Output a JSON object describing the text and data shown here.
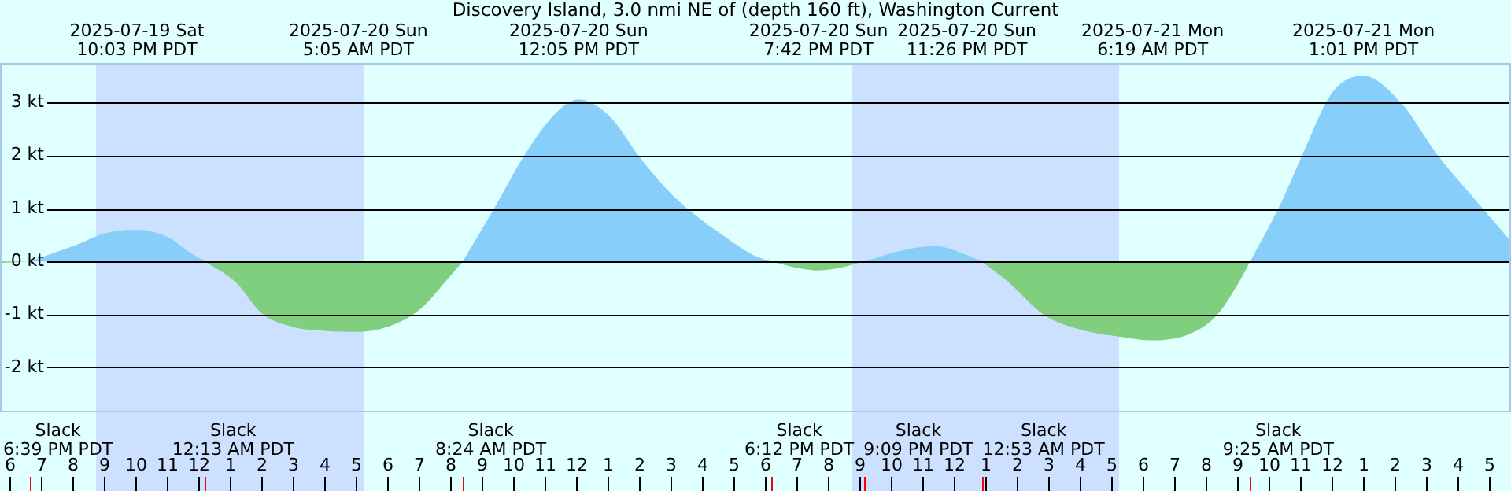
{
  "chart_data": {
    "type": "area",
    "title": "Discovery Island, 3.0 nmi NE of (depth 160 ft), Washington Current",
    "x": [
      "2025-07-19T17:42",
      "2025-07-19T18:39",
      "2025-07-19T20:12",
      "2025-07-19T21:02",
      "2025-07-19T22:03",
      "2025-07-19T23:02",
      "2025-07-19T23:42",
      "2025-07-20T00:13",
      "2025-07-20T01:12",
      "2025-07-20T02:02",
      "2025-07-20T03:02",
      "2025-07-20T04:00",
      "2025-07-20T05:05",
      "2025-07-20T06:02",
      "2025-07-20T07:02",
      "2025-07-20T07:52",
      "2025-07-20T08:24",
      "2025-07-20T09:22",
      "2025-07-20T10:22",
      "2025-07-20T11:22",
      "2025-07-20T12:05",
      "2025-07-20T13:02",
      "2025-07-20T14:02",
      "2025-07-20T15:02",
      "2025-07-20T15:42",
      "2025-07-20T16:42",
      "2025-07-20T17:42",
      "2025-07-20T18:12",
      "2025-07-20T19:00",
      "2025-07-20T19:42",
      "2025-07-20T20:24",
      "2025-07-20T21:09",
      "2025-07-20T22:22",
      "2025-07-20T23:26",
      "2025-07-21T00:22",
      "2025-07-21T00:53",
      "2025-07-21T01:42",
      "2025-07-21T02:52",
      "2025-07-21T04:02",
      "2025-07-21T05:22",
      "2025-07-21T06:19",
      "2025-07-21T07:32",
      "2025-07-21T08:22",
      "2025-07-21T09:02",
      "2025-07-21T09:25",
      "2025-07-21T10:22",
      "2025-07-21T11:02",
      "2025-07-21T12:02",
      "2025-07-21T13:01",
      "2025-07-21T14:12",
      "2025-07-21T15:22",
      "2025-07-21T16:42",
      "2025-07-21T17:42"
    ],
    "series": [
      {
        "color": "#87cefa",
        "values": [
          null,
          0,
          0.33,
          0.53,
          0.6,
          0.46,
          0.18,
          0,
          null,
          null,
          null,
          null,
          null,
          null,
          null,
          null,
          0,
          0.97,
          2.01,
          2.81,
          3.06,
          2.76,
          1.96,
          1.27,
          0.92,
          0.48,
          0.1,
          0,
          null,
          null,
          null,
          0,
          0.21,
          0.29,
          0.13,
          0,
          null,
          null,
          null,
          null,
          null,
          null,
          null,
          null,
          0,
          1.07,
          1.96,
          3.2,
          3.51,
          3.0,
          2.01,
          1.07,
          0.38
        ]
      },
      {
        "color": "#7fcf7f",
        "values": [
          -0.03,
          0,
          null,
          null,
          null,
          null,
          null,
          0,
          -0.4,
          -0.99,
          -1.24,
          -1.31,
          -1.33,
          -1.23,
          -0.91,
          -0.37,
          0,
          null,
          null,
          null,
          null,
          null,
          null,
          null,
          null,
          null,
          null,
          0,
          -0.12,
          -0.17,
          -0.12,
          0,
          null,
          null,
          null,
          0,
          -0.37,
          -1.01,
          -1.29,
          -1.43,
          -1.49,
          -1.36,
          -1.01,
          -0.42,
          0,
          null,
          null,
          null,
          null,
          null,
          null,
          null,
          null
        ]
      }
    ],
    "xlim": [
      "2025-07-19T17:42",
      "2025-07-21T17:42"
    ],
    "xticks": [
      {
        "value": "2025-07-19T18:00",
        "label": "6"
      },
      {
        "value": "2025-07-19T19:00",
        "label": "7"
      },
      {
        "value": "2025-07-19T20:00",
        "label": "8"
      },
      {
        "value": "2025-07-19T21:00",
        "label": "9"
      },
      {
        "value": "2025-07-19T22:00",
        "label": "10"
      },
      {
        "value": "2025-07-19T23:00",
        "label": "11"
      },
      {
        "value": "2025-07-20T00:00",
        "label": "12"
      },
      {
        "value": "2025-07-20T01:00",
        "label": "1"
      },
      {
        "value": "2025-07-20T02:00",
        "label": "2"
      },
      {
        "value": "2025-07-20T03:00",
        "label": "3"
      },
      {
        "value": "2025-07-20T04:00",
        "label": "4"
      },
      {
        "value": "2025-07-20T05:00",
        "label": "5"
      },
      {
        "value": "2025-07-20T06:00",
        "label": "6"
      },
      {
        "value": "2025-07-20T07:00",
        "label": "7"
      },
      {
        "value": "2025-07-20T08:00",
        "label": "8"
      },
      {
        "value": "2025-07-20T09:00",
        "label": "9"
      },
      {
        "value": "2025-07-20T10:00",
        "label": "10"
      },
      {
        "value": "2025-07-20T11:00",
        "label": "11"
      },
      {
        "value": "2025-07-20T12:00",
        "label": "12"
      },
      {
        "value": "2025-07-20T13:00",
        "label": "1"
      },
      {
        "value": "2025-07-20T14:00",
        "label": "2"
      },
      {
        "value": "2025-07-20T15:00",
        "label": "3"
      },
      {
        "value": "2025-07-20T16:00",
        "label": "4"
      },
      {
        "value": "2025-07-20T17:00",
        "label": "5"
      },
      {
        "value": "2025-07-20T18:00",
        "label": "6"
      },
      {
        "value": "2025-07-20T19:00",
        "label": "7"
      },
      {
        "value": "2025-07-20T20:00",
        "label": "8"
      },
      {
        "value": "2025-07-20T21:00",
        "label": "9"
      },
      {
        "value": "2025-07-20T22:00",
        "label": "10"
      },
      {
        "value": "2025-07-20T23:00",
        "label": "11"
      },
      {
        "value": "2025-07-21T00:00",
        "label": "12"
      },
      {
        "value": "2025-07-21T01:00",
        "label": "1"
      },
      {
        "value": "2025-07-21T02:00",
        "label": "2"
      },
      {
        "value": "2025-07-21T03:00",
        "label": "3"
      },
      {
        "value": "2025-07-21T04:00",
        "label": "4"
      },
      {
        "value": "2025-07-21T05:00",
        "label": "5"
      },
      {
        "value": "2025-07-21T06:00",
        "label": "6"
      },
      {
        "value": "2025-07-21T07:00",
        "label": "7"
      },
      {
        "value": "2025-07-21T08:00",
        "label": "8"
      },
      {
        "value": "2025-07-21T09:00",
        "label": "9"
      },
      {
        "value": "2025-07-21T10:00",
        "label": "10"
      },
      {
        "value": "2025-07-21T11:00",
        "label": "11"
      },
      {
        "value": "2025-07-21T12:00",
        "label": "12"
      },
      {
        "value": "2025-07-21T13:00",
        "label": "1"
      },
      {
        "value": "2025-07-21T14:00",
        "label": "2"
      },
      {
        "value": "2025-07-21T15:00",
        "label": "3"
      },
      {
        "value": "2025-07-21T16:00",
        "label": "4"
      },
      {
        "value": "2025-07-21T17:00",
        "label": "5"
      }
    ],
    "ylim": [
      -2.85,
      3.75
    ],
    "yticks": [
      {
        "value": -2,
        "label": "-2 kt"
      },
      {
        "value": -1,
        "label": "-1 kt"
      },
      {
        "value": 0,
        "label": "0 kt"
      },
      {
        "value": 1,
        "label": "1 kt"
      },
      {
        "value": 2,
        "label": "2 kt"
      },
      {
        "value": 3,
        "label": "3 kt"
      }
    ],
    "grid": "y",
    "legend": false,
    "bands": [
      {
        "axis": "x",
        "from": "2025-07-19T20:45",
        "to": "2025-07-20T05:15",
        "color": "#cce0ff"
      },
      {
        "axis": "x",
        "from": "2025-07-20T20:45",
        "to": "2025-07-21T05:15",
        "color": "#cce0ff"
      }
    ],
    "annotations": [
      "Slack\n6:39 PM PDT",
      "2025-07-19 Sat\n10:03 PM PDT",
      "Slack\n12:13 AM PDT",
      "2025-07-20 Sun\n5:05 AM PDT",
      "Slack\n8:24 AM PDT",
      "2025-07-20 Sun\n12:05 PM PDT",
      "Slack\n6:12 PM PDT",
      "2025-07-20 Sun\n7:42 PM PDT",
      "Slack\n9:09 PM PDT",
      "2025-07-20 Sun\n11:26 PM PDT",
      "Slack\n12:53 AM PDT",
      "2025-07-21 Mon\n6:19 AM PDT",
      "Slack\n9:25 AM PDT",
      "2025-07-21 Mon\n1:01 PM PDT"
    ]
  }
}
